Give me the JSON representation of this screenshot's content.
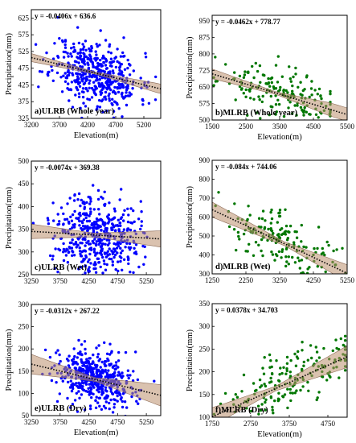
{
  "chart_data": [
    {
      "type": "scatter",
      "panel": "a)ULRB (Whole year)",
      "equation": "y = -0.0406x + 636.6",
      "xlabel": "Elevation(m)",
      "ylabel": "Precipitation(mm)",
      "xlim": [
        3200,
        5500
      ],
      "ylim": [
        325,
        650
      ],
      "xticks": [
        3200,
        3700,
        4200,
        4700,
        5200
      ],
      "yticks": [
        325,
        375,
        425,
        475,
        525,
        575,
        625
      ],
      "slope": -0.0406,
      "intercept": 636.6,
      "band": [
        [
          3200,
          12
        ],
        [
          4350,
          3
        ],
        [
          5450,
          14
        ]
      ],
      "point_color": "#0000FF",
      "cloud": {
        "n": 480,
        "x_mean": 4350,
        "x_sd": 380,
        "x_min": 3230,
        "x_max": 5450,
        "resid_sd": 48,
        "seed": 11
      }
    },
    {
      "type": "scatter",
      "panel": "b)MLRB (Whole year)",
      "equation": "y = -0.0462x + 778.77",
      "xlabel": "Elevation(m)",
      "ylabel": "Precipitation(mm)",
      "xlim": [
        1500,
        5500
      ],
      "ylim": [
        500,
        975
      ],
      "xticks": [
        1500,
        2500,
        3500,
        4500,
        5500
      ],
      "yticks": [
        500,
        575,
        650,
        725,
        800,
        875,
        950
      ],
      "slope": -0.0462,
      "intercept": 778.77,
      "band": [
        [
          1500,
          22
        ],
        [
          3400,
          6
        ],
        [
          5000,
          30
        ]
      ],
      "point_color": "#007700",
      "cloud": {
        "n": 170,
        "x_mean": 3500,
        "x_sd": 900,
        "x_min": 1550,
        "x_max": 5000,
        "resid_sd": 55,
        "seed": 23
      }
    },
    {
      "type": "scatter",
      "panel": "c)ULRB (Wet)",
      "equation": "y = -0.0074x + 369.38",
      "xlabel": "",
      "ylabel": "Precipitation(mm)",
      "xlim": [
        3250,
        5500
      ],
      "ylim": [
        250,
        500
      ],
      "xticks": [
        3250,
        3750,
        4250,
        4750,
        5250
      ],
      "yticks": [
        250,
        300,
        350,
        400,
        450,
        500
      ],
      "slope": -0.0074,
      "intercept": 369.38,
      "band": [
        [
          3250,
          16
        ],
        [
          4350,
          4
        ],
        [
          5500,
          18
        ]
      ],
      "point_color": "#0000FF",
      "cloud": {
        "n": 480,
        "x_mean": 4400,
        "x_sd": 360,
        "x_min": 3280,
        "x_max": 5420,
        "resid_sd": 45,
        "seed": 37
      }
    },
    {
      "type": "scatter",
      "panel": "d)MLRB (Wet)",
      "equation": "y = -0.084x + 744.06",
      "xlabel": "",
      "ylabel": "Precipitation(mm)",
      "xlim": [
        1250,
        5250
      ],
      "ylim": [
        300,
        900
      ],
      "xticks": [
        1250,
        2250,
        3250,
        4250,
        5250
      ],
      "yticks": [
        300,
        400,
        500,
        600,
        700,
        800,
        900
      ],
      "slope": -0.084,
      "intercept": 744.06,
      "band": [
        [
          1250,
          40
        ],
        [
          3400,
          10
        ],
        [
          5250,
          45
        ]
      ],
      "point_color": "#007700",
      "cloud": {
        "n": 170,
        "x_mean": 3400,
        "x_sd": 900,
        "x_min": 1350,
        "x_max": 5200,
        "resid_sd": 75,
        "seed": 41
      }
    },
    {
      "type": "scatter",
      "panel": "e)ULRB (Dry)",
      "equation": "y = -0.0312x + 267.22",
      "xlabel": "Elevation(m)",
      "ylabel": "Precipitation(mm)",
      "xlim": [
        3250,
        5500
      ],
      "ylim": [
        50,
        300
      ],
      "xticks": [
        3250,
        3750,
        4250,
        4750,
        5250
      ],
      "yticks": [
        50,
        100,
        150,
        200,
        250,
        300
      ],
      "slope": -0.0312,
      "intercept": 267.22,
      "band": [
        [
          3250,
          22
        ],
        [
          4350,
          4
        ],
        [
          5500,
          24
        ]
      ],
      "point_color": "#0000FF",
      "cloud": {
        "n": 480,
        "x_mean": 4400,
        "x_sd": 360,
        "x_min": 3280,
        "x_max": 5420,
        "resid_sd": 32,
        "seed": 53
      }
    },
    {
      "type": "scatter",
      "panel": "f)MLRB (Dry)",
      "equation": "y = 0.0378x + 34.703",
      "xlabel": "Elevation(m)",
      "ylabel": "Precipitation(mm)",
      "xlim": [
        1750,
        5250
      ],
      "ylim": [
        100,
        350
      ],
      "xticks": [
        1750,
        2750,
        3750,
        4750
      ],
      "yticks": [
        100,
        150,
        200,
        250,
        300,
        350
      ],
      "slope": 0.0378,
      "intercept": 34.703,
      "band": [
        [
          1750,
          20
        ],
        [
          3400,
          5
        ],
        [
          5250,
          24
        ]
      ],
      "point_color": "#007700",
      "cloud": {
        "n": 170,
        "x_mean": 3700,
        "x_sd": 800,
        "x_min": 1800,
        "x_max": 5200,
        "resid_sd": 30,
        "seed": 67
      }
    }
  ]
}
